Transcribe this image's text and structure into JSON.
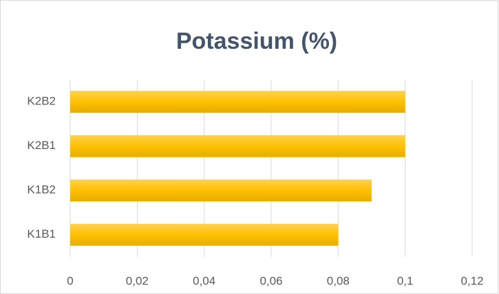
{
  "chart_data": {
    "type": "bar",
    "orientation": "horizontal",
    "title": "Potassium (%)",
    "categories": [
      "K1B1",
      "K1B2",
      "K2B1",
      "K2B2"
    ],
    "values": [
      0.08,
      0.09,
      0.1,
      0.1
    ],
    "color": "#ffc000",
    "xlim": [
      0,
      0.12
    ],
    "xticks": [
      0,
      {
        "value": 0.02,
        "label": "0,02"
      },
      {
        "value": 0.04,
        "label": "0,04"
      },
      {
        "value": 0.06,
        "label": "0,06"
      },
      {
        "value": 0.08,
        "label": "0,08"
      },
      {
        "value": 0.1,
        "label": "0,1"
      },
      {
        "value": 0.12,
        "label": "0,12"
      }
    ],
    "grid": true
  }
}
